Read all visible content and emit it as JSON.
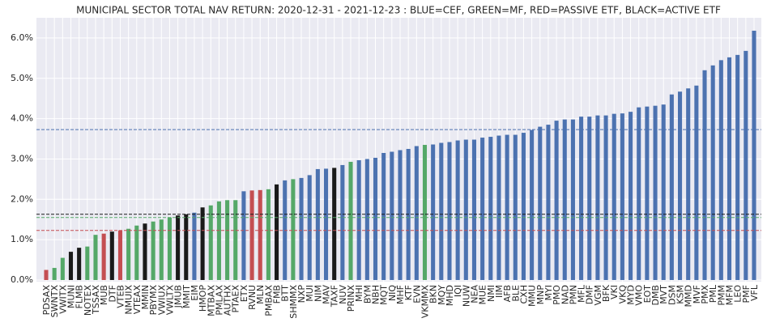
{
  "chart_data": {
    "type": "bar",
    "title": "MUNICIPAL SECTOR TOTAL NAV RETURN: 2020-12-31 - 2021-12-23 : BLUE=CEF, GREEN=MF, RED=PASSIVE ETF, BLACK=ACTIVE ETF",
    "categories": [
      "PDSAX",
      "SWNTX",
      "VWITX",
      "MUNI",
      "FLMB",
      "NOTEX",
      "TSSAX",
      "MUB",
      "DTF",
      "VTEB",
      "NMUIX",
      "VTEAX",
      "MMIN",
      "PBYMX",
      "VWIUX",
      "VWLTX",
      "JMUB",
      "MMIT",
      "EIM",
      "HMOP",
      "MTBAX",
      "PMLAX",
      "AUTHX",
      "PTAEX",
      "ETX",
      "RVNU",
      "MLN",
      "PMBAX",
      "FMB",
      "BTT",
      "SHMMX",
      "NXP",
      "MUI",
      "NIM",
      "MAV",
      "TAXF",
      "NUV",
      "PRINX",
      "MHI",
      "BYM",
      "NBH",
      "MQT",
      "NIQ",
      "MHF",
      "KTF",
      "EVN",
      "VKMMX",
      "BKN",
      "MQY",
      "MHD",
      "IQI",
      "NUW",
      "NEA",
      "MUE",
      "NMI",
      "IIM",
      "AFB",
      "BLE",
      "CXH",
      "MMU",
      "MNP",
      "MYI",
      "PMO",
      "NAD",
      "PMN",
      "MFL",
      "DMF",
      "VGM",
      "BFK",
      "VKI",
      "VKQ",
      "MYD",
      "VMO",
      "EOT",
      "DMB",
      "MVT",
      "DSM",
      "KSM",
      "MMD",
      "MVF",
      "PMX",
      "PML",
      "PMM",
      "MFM",
      "LEO",
      "PMF",
      "VFL"
    ],
    "values": [
      0.25,
      0.3,
      0.55,
      0.7,
      0.8,
      0.83,
      1.12,
      1.15,
      1.2,
      1.23,
      1.27,
      1.35,
      1.4,
      1.45,
      1.5,
      1.55,
      1.6,
      1.63,
      1.67,
      1.8,
      1.85,
      1.95,
      1.98,
      1.98,
      2.2,
      2.22,
      2.23,
      2.25,
      2.37,
      2.47,
      2.5,
      2.53,
      2.6,
      2.75,
      2.76,
      2.78,
      2.85,
      2.93,
      2.97,
      3.0,
      3.03,
      3.15,
      3.18,
      3.22,
      3.25,
      3.32,
      3.35,
      3.36,
      3.4,
      3.42,
      3.46,
      3.48,
      3.48,
      3.53,
      3.55,
      3.58,
      3.6,
      3.6,
      3.65,
      3.72,
      3.8,
      3.85,
      3.95,
      3.98,
      3.98,
      4.05,
      4.05,
      4.08,
      4.08,
      4.12,
      4.13,
      4.17,
      4.28,
      4.3,
      4.32,
      4.35,
      4.6,
      4.67,
      4.75,
      4.82,
      5.2,
      5.32,
      5.45,
      5.52,
      5.58,
      5.68,
      6.18
    ],
    "colors": [
      "#c44e52",
      "#55a868",
      "#55a868",
      "#1a1a1a",
      "#1a1a1a",
      "#55a868",
      "#55a868",
      "#c44e52",
      "#1a1a1a",
      "#c44e52",
      "#55a868",
      "#55a868",
      "#1a1a1a",
      "#55a868",
      "#55a868",
      "#55a868",
      "#1a1a1a",
      "#1a1a1a",
      "#4c72b0",
      "#1a1a1a",
      "#55a868",
      "#55a868",
      "#55a868",
      "#55a868",
      "#4c72b0",
      "#c44e52",
      "#c44e52",
      "#55a868",
      "#1a1a1a",
      "#4c72b0",
      "#55a868",
      "#4c72b0",
      "#4c72b0",
      "#4c72b0",
      "#4c72b0",
      "#1a1a1a",
      "#4c72b0",
      "#55a868",
      "#4c72b0",
      "#4c72b0",
      "#4c72b0",
      "#4c72b0",
      "#4c72b0",
      "#4c72b0",
      "#4c72b0",
      "#4c72b0",
      "#55a868",
      "#4c72b0",
      "#4c72b0",
      "#4c72b0",
      "#4c72b0",
      "#4c72b0",
      "#4c72b0",
      "#4c72b0",
      "#4c72b0",
      "#4c72b0",
      "#4c72b0",
      "#4c72b0",
      "#4c72b0",
      "#4c72b0",
      "#4c72b0",
      "#4c72b0",
      "#4c72b0",
      "#4c72b0",
      "#4c72b0",
      "#4c72b0",
      "#4c72b0",
      "#4c72b0",
      "#4c72b0",
      "#4c72b0",
      "#4c72b0",
      "#4c72b0",
      "#4c72b0",
      "#4c72b0",
      "#4c72b0",
      "#4c72b0",
      "#4c72b0",
      "#4c72b0",
      "#4c72b0",
      "#4c72b0",
      "#4c72b0",
      "#4c72b0",
      "#4c72b0",
      "#4c72b0",
      "#4c72b0",
      "#4c72b0",
      "#4c72b0"
    ],
    "hlines": [
      {
        "value": 3.73,
        "color": "#4c72b0"
      },
      {
        "value": 1.63,
        "color": "#1a1a1a"
      },
      {
        "value": 1.55,
        "color": "#55a868"
      },
      {
        "value": 1.23,
        "color": "#c44e52"
      }
    ],
    "ylim": [
      -0.04,
      6.5
    ],
    "yticks": [
      {
        "value": 0,
        "label": "0.0%"
      },
      {
        "value": 1,
        "label": "1.0%"
      },
      {
        "value": 2,
        "label": "2.0%"
      },
      {
        "value": 3,
        "label": "3.0%"
      },
      {
        "value": 4,
        "label": "4.0%"
      },
      {
        "value": 5,
        "label": "5.0%"
      },
      {
        "value": 6,
        "label": "6.0%"
      }
    ],
    "grid": true
  }
}
